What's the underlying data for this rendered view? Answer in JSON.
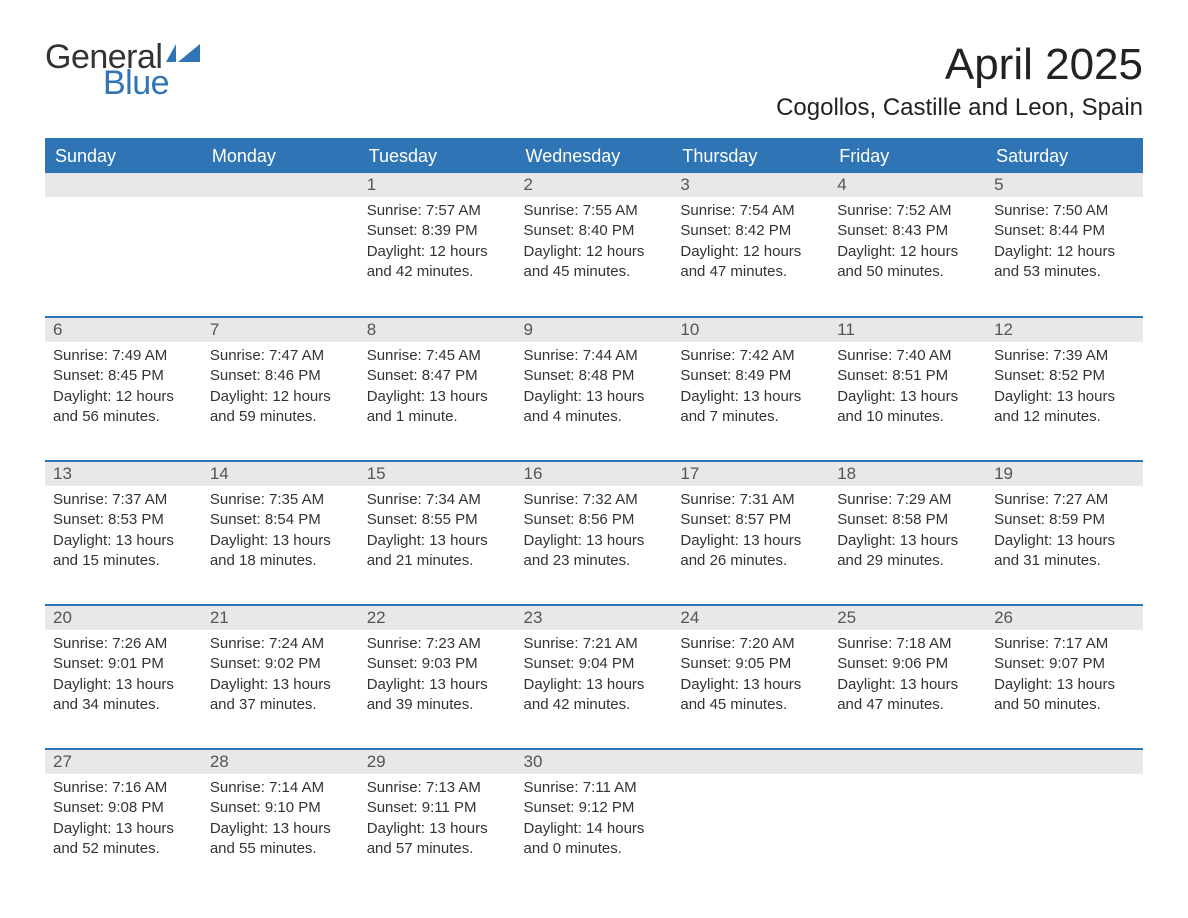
{
  "logo": {
    "general": "General",
    "blue": "Blue",
    "flag_color": "#2f75b5"
  },
  "title": "April 2025",
  "location": "Cogollos, Castille and Leon, Spain",
  "colors": {
    "header_bg": "#2f75b5",
    "header_text": "#ffffff",
    "daynum_bg": "#e8e8e8",
    "daynum_text": "#555555",
    "body_text": "#333333",
    "border": "#2f75b5",
    "background": "#ffffff"
  },
  "typography": {
    "title_size": 44,
    "location_size": 24,
    "header_size": 18,
    "daynum_size": 17,
    "body_size": 15
  },
  "columns": [
    "Sunday",
    "Monday",
    "Tuesday",
    "Wednesday",
    "Thursday",
    "Friday",
    "Saturday"
  ],
  "weeks": [
    [
      {
        "n": "",
        "sunrise": "",
        "sunset": "",
        "daylight": ""
      },
      {
        "n": "",
        "sunrise": "",
        "sunset": "",
        "daylight": ""
      },
      {
        "n": "1",
        "sunrise": "Sunrise: 7:57 AM",
        "sunset": "Sunset: 8:39 PM",
        "daylight": "Daylight: 12 hours and 42 minutes."
      },
      {
        "n": "2",
        "sunrise": "Sunrise: 7:55 AM",
        "sunset": "Sunset: 8:40 PM",
        "daylight": "Daylight: 12 hours and 45 minutes."
      },
      {
        "n": "3",
        "sunrise": "Sunrise: 7:54 AM",
        "sunset": "Sunset: 8:42 PM",
        "daylight": "Daylight: 12 hours and 47 minutes."
      },
      {
        "n": "4",
        "sunrise": "Sunrise: 7:52 AM",
        "sunset": "Sunset: 8:43 PM",
        "daylight": "Daylight: 12 hours and 50 minutes."
      },
      {
        "n": "5",
        "sunrise": "Sunrise: 7:50 AM",
        "sunset": "Sunset: 8:44 PM",
        "daylight": "Daylight: 12 hours and 53 minutes."
      }
    ],
    [
      {
        "n": "6",
        "sunrise": "Sunrise: 7:49 AM",
        "sunset": "Sunset: 8:45 PM",
        "daylight": "Daylight: 12 hours and 56 minutes."
      },
      {
        "n": "7",
        "sunrise": "Sunrise: 7:47 AM",
        "sunset": "Sunset: 8:46 PM",
        "daylight": "Daylight: 12 hours and 59 minutes."
      },
      {
        "n": "8",
        "sunrise": "Sunrise: 7:45 AM",
        "sunset": "Sunset: 8:47 PM",
        "daylight": "Daylight: 13 hours and 1 minute."
      },
      {
        "n": "9",
        "sunrise": "Sunrise: 7:44 AM",
        "sunset": "Sunset: 8:48 PM",
        "daylight": "Daylight: 13 hours and 4 minutes."
      },
      {
        "n": "10",
        "sunrise": "Sunrise: 7:42 AM",
        "sunset": "Sunset: 8:49 PM",
        "daylight": "Daylight: 13 hours and 7 minutes."
      },
      {
        "n": "11",
        "sunrise": "Sunrise: 7:40 AM",
        "sunset": "Sunset: 8:51 PM",
        "daylight": "Daylight: 13 hours and 10 minutes."
      },
      {
        "n": "12",
        "sunrise": "Sunrise: 7:39 AM",
        "sunset": "Sunset: 8:52 PM",
        "daylight": "Daylight: 13 hours and 12 minutes."
      }
    ],
    [
      {
        "n": "13",
        "sunrise": "Sunrise: 7:37 AM",
        "sunset": "Sunset: 8:53 PM",
        "daylight": "Daylight: 13 hours and 15 minutes."
      },
      {
        "n": "14",
        "sunrise": "Sunrise: 7:35 AM",
        "sunset": "Sunset: 8:54 PM",
        "daylight": "Daylight: 13 hours and 18 minutes."
      },
      {
        "n": "15",
        "sunrise": "Sunrise: 7:34 AM",
        "sunset": "Sunset: 8:55 PM",
        "daylight": "Daylight: 13 hours and 21 minutes."
      },
      {
        "n": "16",
        "sunrise": "Sunrise: 7:32 AM",
        "sunset": "Sunset: 8:56 PM",
        "daylight": "Daylight: 13 hours and 23 minutes."
      },
      {
        "n": "17",
        "sunrise": "Sunrise: 7:31 AM",
        "sunset": "Sunset: 8:57 PM",
        "daylight": "Daylight: 13 hours and 26 minutes."
      },
      {
        "n": "18",
        "sunrise": "Sunrise: 7:29 AM",
        "sunset": "Sunset: 8:58 PM",
        "daylight": "Daylight: 13 hours and 29 minutes."
      },
      {
        "n": "19",
        "sunrise": "Sunrise: 7:27 AM",
        "sunset": "Sunset: 8:59 PM",
        "daylight": "Daylight: 13 hours and 31 minutes."
      }
    ],
    [
      {
        "n": "20",
        "sunrise": "Sunrise: 7:26 AM",
        "sunset": "Sunset: 9:01 PM",
        "daylight": "Daylight: 13 hours and 34 minutes."
      },
      {
        "n": "21",
        "sunrise": "Sunrise: 7:24 AM",
        "sunset": "Sunset: 9:02 PM",
        "daylight": "Daylight: 13 hours and 37 minutes."
      },
      {
        "n": "22",
        "sunrise": "Sunrise: 7:23 AM",
        "sunset": "Sunset: 9:03 PM",
        "daylight": "Daylight: 13 hours and 39 minutes."
      },
      {
        "n": "23",
        "sunrise": "Sunrise: 7:21 AM",
        "sunset": "Sunset: 9:04 PM",
        "daylight": "Daylight: 13 hours and 42 minutes."
      },
      {
        "n": "24",
        "sunrise": "Sunrise: 7:20 AM",
        "sunset": "Sunset: 9:05 PM",
        "daylight": "Daylight: 13 hours and 45 minutes."
      },
      {
        "n": "25",
        "sunrise": "Sunrise: 7:18 AM",
        "sunset": "Sunset: 9:06 PM",
        "daylight": "Daylight: 13 hours and 47 minutes."
      },
      {
        "n": "26",
        "sunrise": "Sunrise: 7:17 AM",
        "sunset": "Sunset: 9:07 PM",
        "daylight": "Daylight: 13 hours and 50 minutes."
      }
    ],
    [
      {
        "n": "27",
        "sunrise": "Sunrise: 7:16 AM",
        "sunset": "Sunset: 9:08 PM",
        "daylight": "Daylight: 13 hours and 52 minutes."
      },
      {
        "n": "28",
        "sunrise": "Sunrise: 7:14 AM",
        "sunset": "Sunset: 9:10 PM",
        "daylight": "Daylight: 13 hours and 55 minutes."
      },
      {
        "n": "29",
        "sunrise": "Sunrise: 7:13 AM",
        "sunset": "Sunset: 9:11 PM",
        "daylight": "Daylight: 13 hours and 57 minutes."
      },
      {
        "n": "30",
        "sunrise": "Sunrise: 7:11 AM",
        "sunset": "Sunset: 9:12 PM",
        "daylight": "Daylight: 14 hours and 0 minutes."
      },
      {
        "n": "",
        "sunrise": "",
        "sunset": "",
        "daylight": ""
      },
      {
        "n": "",
        "sunrise": "",
        "sunset": "",
        "daylight": ""
      },
      {
        "n": "",
        "sunrise": "",
        "sunset": "",
        "daylight": ""
      }
    ]
  ]
}
